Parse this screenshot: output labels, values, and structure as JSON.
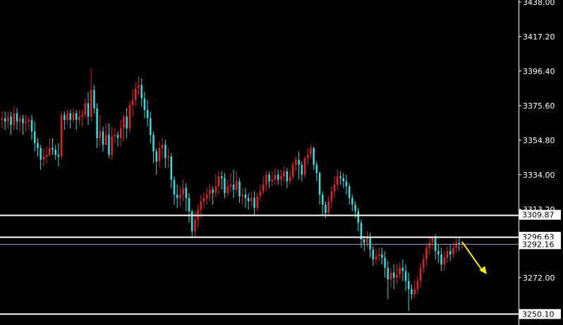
{
  "chart_data": {
    "type": "candlestick",
    "y_axis": {
      "position": "right",
      "ylim": [
        3243.5,
        3439.2
      ],
      "ticks": [
        {
          "value": 3438.0,
          "label": "3438.00"
        },
        {
          "value": 3417.2,
          "label": "3417.20"
        },
        {
          "value": 3396.4,
          "label": "3396.40"
        },
        {
          "value": 3375.6,
          "label": "3375.60"
        },
        {
          "value": 3354.8,
          "label": "3354.80"
        },
        {
          "value": 3334.0,
          "label": "3334.00"
        },
        {
          "value": 3313.2,
          "label": "3313.20"
        },
        {
          "value": 3292.16,
          "label": "3292.16"
        },
        {
          "value": 3272.0,
          "label": "3272.00"
        }
      ]
    },
    "levels": [
      {
        "value": 3309.87,
        "label": "3309.87"
      },
      {
        "value": 3296.63,
        "label": "3296.63"
      },
      {
        "value": 3250.1,
        "label": "3250.10"
      }
    ],
    "current_price": {
      "value": 3292.16,
      "label": "3292.16"
    },
    "annotation": {
      "type": "arrow",
      "color": "#ffee00",
      "from": 3293.5,
      "to": 3274.0
    },
    "colors": {
      "up": "#e8202a",
      "down": "#2fe0e0",
      "background": "#000000",
      "level_line": "#ffffff",
      "current_line": "#8fa0c0"
    },
    "candles": [
      [
        3367,
        3368,
        3362,
        3372
      ],
      [
        3368,
        3366,
        3361,
        3372
      ],
      [
        3366,
        3369,
        3362,
        3372
      ],
      [
        3369,
        3364,
        3358,
        3372
      ],
      [
        3364,
        3371,
        3361,
        3375
      ],
      [
        3371,
        3366,
        3361,
        3374
      ],
      [
        3366,
        3368,
        3360,
        3370
      ],
      [
        3368,
        3365,
        3358,
        3370
      ],
      [
        3365,
        3366,
        3360,
        3370
      ],
      [
        3366,
        3367,
        3361,
        3369
      ],
      [
        3367,
        3360,
        3355,
        3370
      ],
      [
        3360,
        3353,
        3348,
        3366
      ],
      [
        3353,
        3350,
        3345,
        3356
      ],
      [
        3350,
        3343,
        3337,
        3352
      ],
      [
        3343,
        3345,
        3339,
        3350
      ],
      [
        3345,
        3346,
        3341,
        3351
      ],
      [
        3346,
        3350,
        3345,
        3356
      ],
      [
        3350,
        3349,
        3346,
        3356
      ],
      [
        3349,
        3346,
        3343,
        3352
      ],
      [
        3346,
        3345,
        3339,
        3353
      ],
      [
        3345,
        3370,
        3343,
        3372
      ],
      [
        3370,
        3367,
        3361,
        3372
      ],
      [
        3367,
        3371,
        3364,
        3373
      ],
      [
        3371,
        3367,
        3362,
        3373
      ],
      [
        3367,
        3371,
        3365,
        3374
      ],
      [
        3371,
        3367,
        3361,
        3373
      ],
      [
        3367,
        3369,
        3364,
        3373
      ],
      [
        3369,
        3370,
        3363,
        3373
      ],
      [
        3370,
        3377,
        3368,
        3380
      ],
      [
        3377,
        3369,
        3364,
        3384
      ],
      [
        3369,
        3385,
        3366,
        3398
      ],
      [
        3385,
        3374,
        3371,
        3388
      ],
      [
        3374,
        3356,
        3350,
        3377
      ],
      [
        3356,
        3360,
        3351,
        3370
      ],
      [
        3360,
        3352,
        3348,
        3363
      ],
      [
        3352,
        3358,
        3352,
        3365
      ],
      [
        3358,
        3346,
        3344,
        3365
      ],
      [
        3346,
        3357,
        3343,
        3363
      ],
      [
        3357,
        3358,
        3353,
        3362
      ],
      [
        3358,
        3356,
        3351,
        3360
      ],
      [
        3356,
        3362,
        3351,
        3367
      ],
      [
        3362,
        3369,
        3354,
        3370
      ],
      [
        3369,
        3362,
        3356,
        3374
      ],
      [
        3362,
        3376,
        3359,
        3378
      ],
      [
        3376,
        3379,
        3369,
        3385
      ],
      [
        3379,
        3386,
        3375,
        3390
      ],
      [
        3386,
        3388,
        3382,
        3393
      ],
      [
        3388,
        3380,
        3375,
        3392
      ],
      [
        3380,
        3373,
        3368,
        3384
      ],
      [
        3373,
        3368,
        3363,
        3379
      ],
      [
        3368,
        3358,
        3353,
        3372
      ],
      [
        3358,
        3348,
        3341,
        3360
      ],
      [
        3348,
        3342,
        3334,
        3350
      ],
      [
        3342,
        3350,
        3338,
        3354
      ],
      [
        3350,
        3352,
        3344,
        3356
      ],
      [
        3352,
        3344,
        3338,
        3355
      ],
      [
        3344,
        3345,
        3338,
        3350
      ],
      [
        3345,
        3331,
        3326,
        3347
      ],
      [
        3331,
        3322,
        3316,
        3333
      ],
      [
        3322,
        3320,
        3314,
        3328
      ],
      [
        3320,
        3322,
        3315,
        3327
      ],
      [
        3322,
        3326,
        3318,
        3331
      ],
      [
        3326,
        3320,
        3312,
        3329
      ],
      [
        3320,
        3312,
        3305,
        3323
      ],
      [
        3312,
        3300,
        3296,
        3313
      ],
      [
        3300,
        3307,
        3296,
        3312
      ],
      [
        3307,
        3313,
        3302,
        3316
      ],
      [
        3313,
        3318,
        3308,
        3322
      ],
      [
        3318,
        3320,
        3314,
        3323
      ],
      [
        3320,
        3322,
        3316,
        3326
      ],
      [
        3322,
        3325,
        3318,
        3328
      ],
      [
        3325,
        3323,
        3316,
        3327
      ],
      [
        3323,
        3327,
        3320,
        3334
      ],
      [
        3327,
        3333,
        3322,
        3336
      ],
      [
        3333,
        3332,
        3325,
        3336
      ],
      [
        3332,
        3323,
        3320,
        3335
      ],
      [
        3323,
        3327,
        3321,
        3331
      ],
      [
        3327,
        3328,
        3324,
        3335
      ],
      [
        3328,
        3325,
        3320,
        3337
      ],
      [
        3325,
        3330,
        3323,
        3336
      ],
      [
        3330,
        3321,
        3317,
        3332
      ],
      [
        3321,
        3322,
        3316,
        3326
      ],
      [
        3322,
        3320,
        3314,
        3326
      ],
      [
        3320,
        3318,
        3313,
        3323
      ],
      [
        3318,
        3320,
        3315,
        3324
      ],
      [
        3320,
        3314,
        3309,
        3324
      ],
      [
        3314,
        3321,
        3312,
        3323
      ],
      [
        3321,
        3324,
        3318,
        3328
      ],
      [
        3324,
        3328,
        3322,
        3333
      ],
      [
        3328,
        3334,
        3324,
        3336
      ],
      [
        3334,
        3330,
        3326,
        3336
      ],
      [
        3330,
        3331,
        3327,
        3336
      ],
      [
        3331,
        3334,
        3328,
        3338
      ],
      [
        3334,
        3331,
        3328,
        3337
      ],
      [
        3331,
        3333,
        3327,
        3337
      ],
      [
        3333,
        3336,
        3330,
        3339
      ],
      [
        3336,
        3330,
        3326,
        3338
      ],
      [
        3330,
        3333,
        3328,
        3337
      ],
      [
        3333,
        3340,
        3331,
        3342
      ],
      [
        3340,
        3343,
        3336,
        3345
      ],
      [
        3343,
        3340,
        3331,
        3348
      ],
      [
        3340,
        3334,
        3330,
        3342
      ],
      [
        3334,
        3344,
        3332,
        3345
      ],
      [
        3344,
        3346,
        3340,
        3350
      ],
      [
        3346,
        3350,
        3344,
        3352
      ],
      [
        3350,
        3340,
        3337,
        3351
      ],
      [
        3340,
        3335,
        3330,
        3342
      ],
      [
        3335,
        3322,
        3316,
        3336
      ],
      [
        3322,
        3316,
        3310,
        3324
      ],
      [
        3316,
        3311,
        3308,
        3318
      ],
      [
        3311,
        3318,
        3309,
        3321
      ],
      [
        3318,
        3324,
        3314,
        3327
      ],
      [
        3324,
        3328,
        3320,
        3333
      ],
      [
        3328,
        3333,
        3325,
        3337
      ],
      [
        3333,
        3332,
        3328,
        3336
      ],
      [
        3332,
        3330,
        3326,
        3335
      ],
      [
        3330,
        3327,
        3322,
        3334
      ],
      [
        3327,
        3320,
        3316,
        3329
      ],
      [
        3320,
        3316,
        3312,
        3322
      ],
      [
        3316,
        3312,
        3308,
        3318
      ],
      [
        3312,
        3305,
        3300,
        3314
      ],
      [
        3305,
        3295,
        3290,
        3307
      ],
      [
        3295,
        3293,
        3288,
        3297
      ],
      [
        3293,
        3296,
        3290,
        3300
      ],
      [
        3296,
        3289,
        3284,
        3299
      ],
      [
        3289,
        3283,
        3279,
        3291
      ],
      [
        3283,
        3285,
        3280,
        3289
      ],
      [
        3285,
        3286,
        3282,
        3290
      ],
      [
        3286,
        3284,
        3280,
        3290
      ],
      [
        3284,
        3278,
        3272,
        3288
      ],
      [
        3278,
        3271,
        3259,
        3282
      ],
      [
        3271,
        3275,
        3266,
        3278
      ],
      [
        3275,
        3272,
        3265,
        3280
      ],
      [
        3272,
        3274,
        3268,
        3280
      ],
      [
        3274,
        3278,
        3271,
        3281
      ],
      [
        3278,
        3276,
        3270,
        3283
      ],
      [
        3276,
        3270,
        3264,
        3280
      ],
      [
        3270,
        3265,
        3252,
        3275
      ],
      [
        3265,
        3262,
        3259,
        3268
      ],
      [
        3262,
        3265,
        3260,
        3270
      ],
      [
        3265,
        3270,
        3262,
        3273
      ],
      [
        3270,
        3278,
        3266,
        3281
      ],
      [
        3278,
        3283,
        3275,
        3286
      ],
      [
        3283,
        3290,
        3279,
        3292
      ],
      [
        3290,
        3293,
        3286,
        3296
      ],
      [
        3293,
        3296,
        3289,
        3297
      ],
      [
        3296,
        3288,
        3283,
        3298
      ],
      [
        3288,
        3286,
        3281,
        3292
      ],
      [
        3286,
        3280,
        3276,
        3290
      ],
      [
        3280,
        3284,
        3276,
        3288
      ],
      [
        3284,
        3288,
        3281,
        3291
      ],
      [
        3288,
        3286,
        3282,
        3292
      ],
      [
        3286,
        3290,
        3284,
        3293
      ],
      [
        3290,
        3293,
        3287,
        3296
      ],
      [
        3293,
        3292,
        3288,
        3296
      ],
      [
        3292,
        3292,
        3289,
        3294
      ]
    ]
  }
}
